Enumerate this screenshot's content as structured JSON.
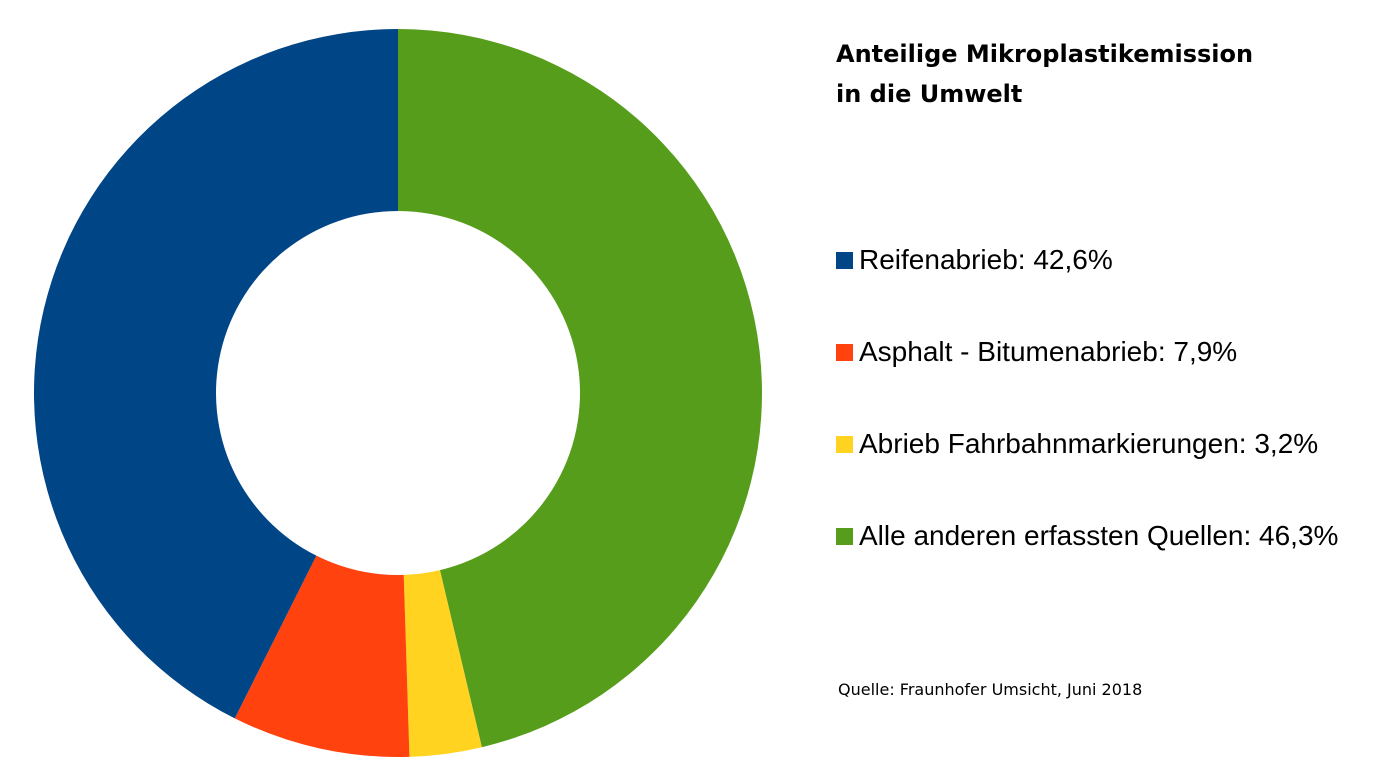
{
  "chart_data": {
    "type": "pie",
    "title_lines": [
      "Anteilige Mikroplastikemission",
      "in die Umwelt"
    ],
    "slices": [
      {
        "label": "Reifenabrieb",
        "value": 42.6,
        "legend": "Reifenabrieb: 42,6%",
        "color": "#004586"
      },
      {
        "label": "Asphalt - Bitumenabrieb",
        "value": 7.9,
        "legend": "Asphalt - Bitumenabrieb: 7,9%",
        "color": "#ff420e"
      },
      {
        "label": "Abrieb Fahrbahnmarkierungen",
        "value": 3.2,
        "legend": "Abrieb Fahrbahnmarkierungen: 3,2%",
        "color": "#ffd320"
      },
      {
        "label": "Alle anderen erfassten Quellen",
        "value": 46.3,
        "legend": "Alle anderen erfassten Quellen: 46,3%",
        "color": "#579d1c"
      }
    ],
    "draw_order": [
      3,
      2,
      1,
      0
    ],
    "start_angle": "12 o'clock",
    "direction": "clockwise",
    "legend_position": "right",
    "source": "Quelle: Fraunhofer Umsicht, Juni 2018"
  }
}
